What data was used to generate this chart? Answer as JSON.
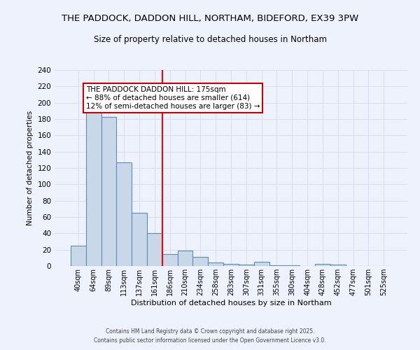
{
  "title1": "THE PADDOCK, DADDON HILL, NORTHAM, BIDEFORD, EX39 3PW",
  "title2": "Size of property relative to detached houses in Northam",
  "xlabel": "Distribution of detached houses by size in Northam",
  "ylabel": "Number of detached properties",
  "categories": [
    "40sqm",
    "64sqm",
    "89sqm",
    "113sqm",
    "137sqm",
    "161sqm",
    "186sqm",
    "210sqm",
    "234sqm",
    "258sqm",
    "283sqm",
    "307sqm",
    "331sqm",
    "355sqm",
    "380sqm",
    "404sqm",
    "428sqm",
    "452sqm",
    "477sqm",
    "501sqm",
    "525sqm"
  ],
  "values": [
    25,
    193,
    183,
    127,
    65,
    40,
    15,
    19,
    11,
    4,
    3,
    2,
    5,
    1,
    1,
    0,
    3,
    2,
    0,
    0,
    0
  ],
  "bar_color": "#c8d8e8",
  "bar_edge_color": "#5b8db8",
  "grid_color": "#d8e0f0",
  "background_color": "#eef2fc",
  "red_line_x": 5.5,
  "annotation_text": "THE PADDOCK DADDON HILL: 175sqm\n← 88% of detached houses are smaller (614)\n12% of semi-detached houses are larger (83) →",
  "annotation_box_color": "#ffffff",
  "annotation_border_color": "#cc0000",
  "footer1": "Contains HM Land Registry data © Crown copyright and database right 2025.",
  "footer2": "Contains public sector information licensed under the Open Government Licence v3.0.",
  "ylim": [
    0,
    240
  ],
  "yticks": [
    0,
    20,
    40,
    60,
    80,
    100,
    120,
    140,
    160,
    180,
    200,
    220,
    240
  ],
  "title1_fontsize": 9.5,
  "title2_fontsize": 8.5,
  "ylabel_fontsize": 7.5,
  "xlabel_fontsize": 8.0,
  "tick_fontsize": 7.5,
  "xtick_fontsize": 7.0,
  "annot_fontsize": 7.5
}
